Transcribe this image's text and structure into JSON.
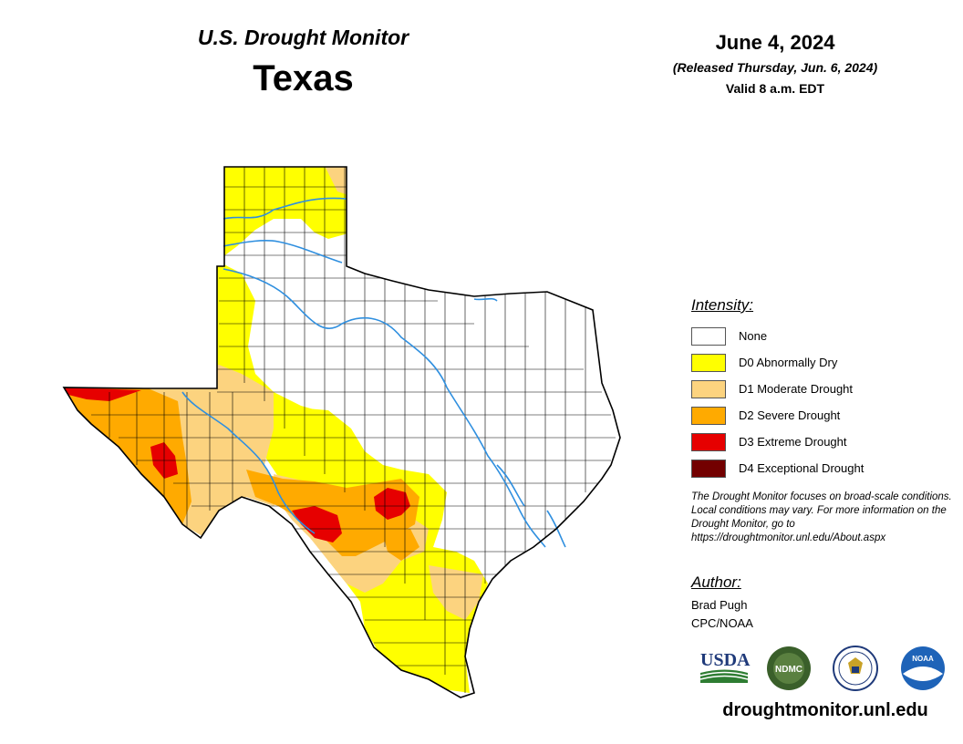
{
  "header": {
    "product": "U.S. Drought Monitor",
    "region": "Texas",
    "date": "June 4, 2024",
    "released": "(Released Thursday, Jun. 6, 2024)",
    "valid": "Valid 8 a.m. EDT"
  },
  "legend": {
    "title": "Intensity:",
    "items": [
      {
        "label": "None",
        "color": "#ffffff"
      },
      {
        "label": "D0 Abnormally Dry",
        "color": "#ffff00"
      },
      {
        "label": "D1 Moderate Drought",
        "color": "#fcd37f"
      },
      {
        "label": "D2 Severe Drought",
        "color": "#ffaa00"
      },
      {
        "label": "D3 Extreme Drought",
        "color": "#e60000"
      },
      {
        "label": "D4 Exceptional Drought",
        "color": "#730000"
      }
    ]
  },
  "disclaimer": "The Drought Monitor focuses on broad-scale conditions. Local conditions may vary. For more information on the Drought Monitor, go to https://droughtmonitor.unl.edu/About.aspx",
  "author": {
    "title": "Author:",
    "name": "Brad Pugh",
    "org": "CPC/NOAA"
  },
  "logos": {
    "usda": "USDA",
    "ndmc": "NDMC",
    "noaa": "NOAA"
  },
  "website": "droughtmonitor.unl.edu",
  "colors": {
    "river": "#2f8fdf",
    "state_outline": "#000000",
    "county_lines": "#000000"
  }
}
